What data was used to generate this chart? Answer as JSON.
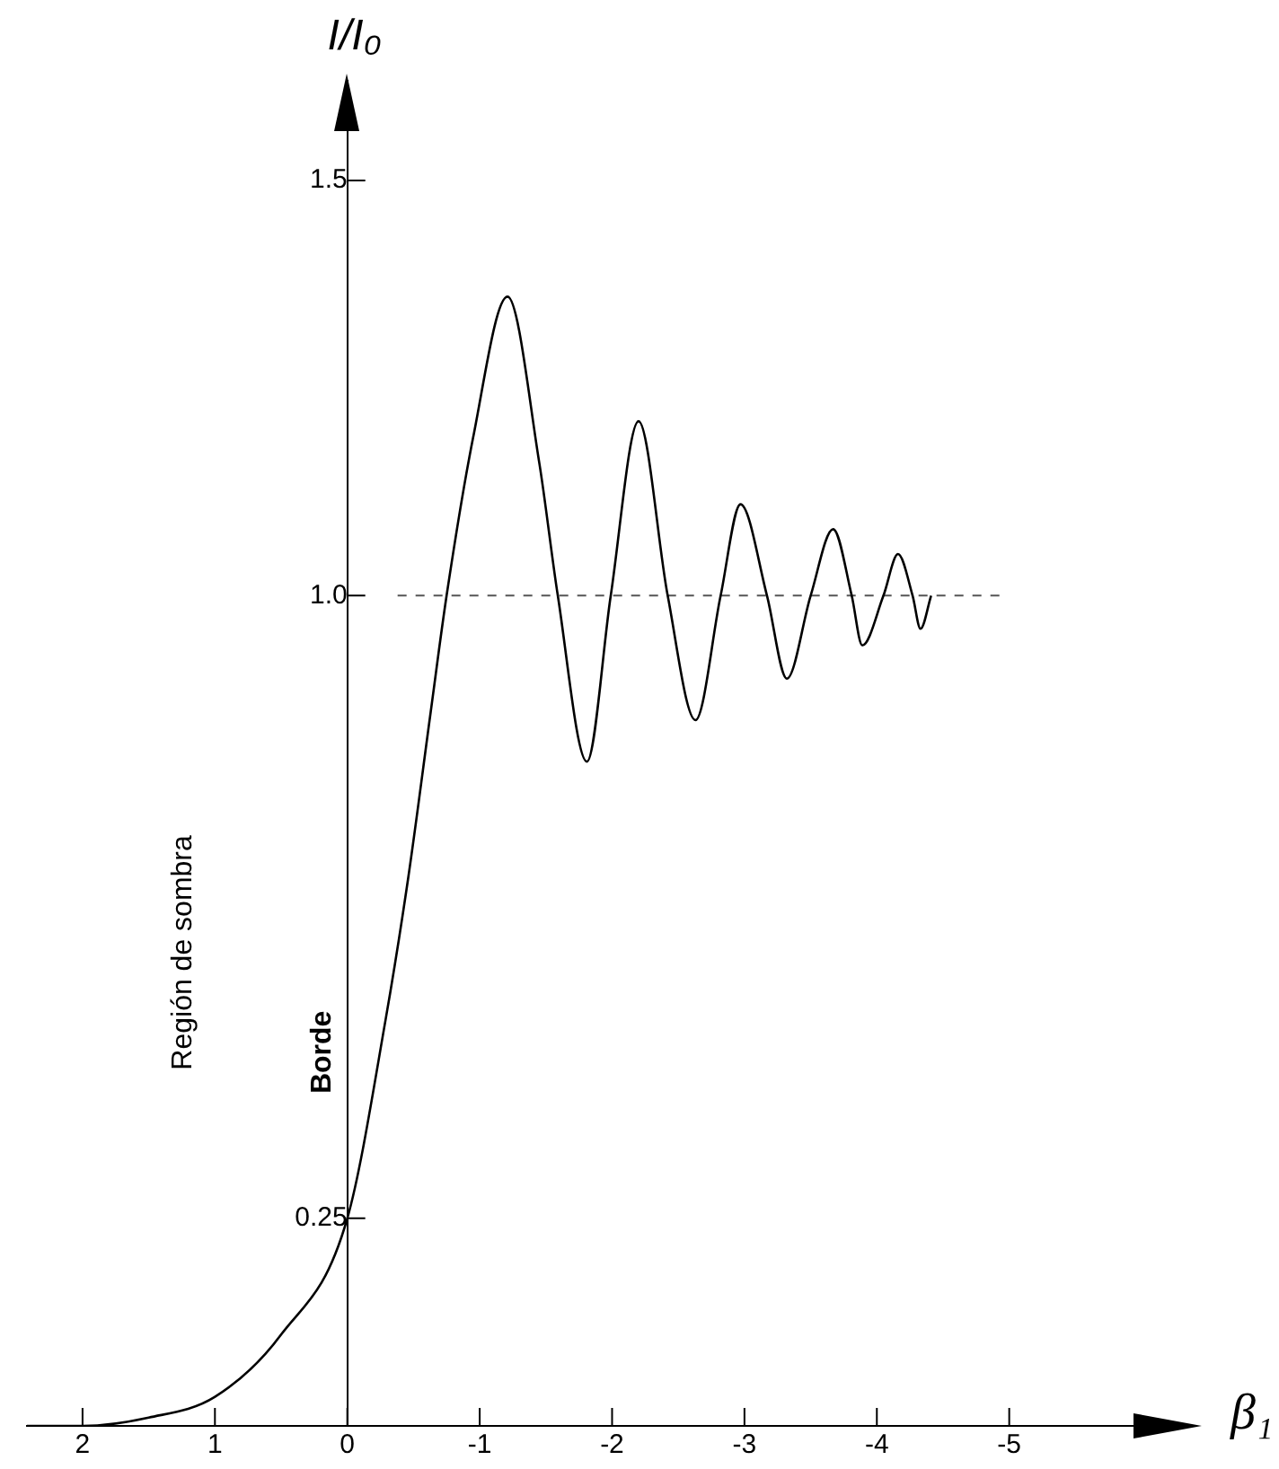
{
  "chart_data": {
    "type": "line",
    "xlabel": "β₁",
    "ylabel": "I/I₀",
    "x": [
      2.42,
      2,
      1.5,
      1,
      0.5,
      0,
      -0.29,
      -0.46,
      -0.63,
      -0.75,
      -0.95,
      -1.21,
      -1.45,
      -1.59,
      -1.81,
      -1.99,
      -2.2,
      -2.42,
      -2.63,
      -2.82,
      -2.97,
      -3.17,
      -3.32,
      -3.5,
      -3.67,
      -3.81,
      -3.89,
      -4.05,
      -4.16,
      -4.27,
      -4.33,
      -4.41
    ],
    "series": [
      {
        "color": "#000000",
        "values": [
          0,
          0,
          0.01,
          0.035,
          0.11,
          0.25,
          0.49,
          0.66,
          0.86,
          1.0,
          1.19,
          1.36,
          1.16,
          1.0,
          0.8,
          1.0,
          1.21,
          1.0,
          0.85,
          1.0,
          1.11,
          1.0,
          0.9,
          1.0,
          1.08,
          1.0,
          0.94,
          1.0,
          1.05,
          1.0,
          0.96,
          1.0
        ]
      }
    ],
    "xlim": [
      2.42,
      -6.4
    ],
    "ylim": [
      0,
      1.62
    ],
    "xticks": [
      2,
      1,
      0,
      -1,
      -2,
      -3,
      -4,
      -5
    ],
    "yticks": [
      {
        "value": 0.25,
        "label": "0.25"
      },
      {
        "value": 1,
        "label": "1.0"
      },
      1.5
    ],
    "ref_lines": [
      {
        "axis": "y",
        "value": 1,
        "color": "#555555",
        "line_style": "dashed"
      }
    ],
    "annotations": [
      "Región de sombra",
      "Borde"
    ],
    "grid": false,
    "legend": false,
    "marker": "none",
    "line_style": "solid"
  }
}
